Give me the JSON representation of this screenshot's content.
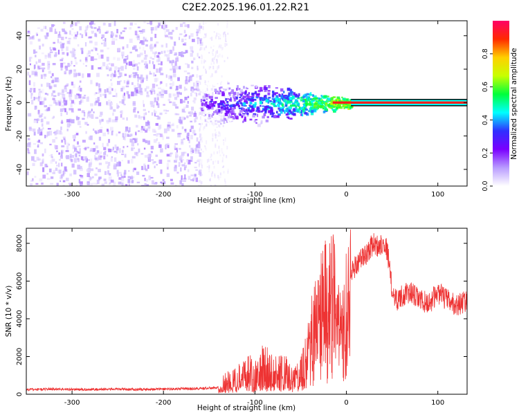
{
  "title": "C2E2.2025.196.01.22.R21",
  "colors": {
    "snr_line": "#ee3333",
    "scatter_base": "#7a1cf0",
    "frame": "#000000",
    "colormap_stops": [
      "#ffffff",
      "#b99cff",
      "#7a00ff",
      "#2f2fff",
      "#00ffff",
      "#00ff3c",
      "#c8ff00",
      "#ffd000",
      "#ff2a00",
      "#ff0066"
    ]
  },
  "chart_data": [
    {
      "type": "heatmap",
      "xlabel": "Height of straight line (km)",
      "ylabel": "Frequency (Hz)",
      "xlim": [
        -350,
        132
      ],
      "ylim": [
        -50,
        49
      ],
      "xticks": [
        -300,
        -200,
        -100,
        0,
        100
      ],
      "yticks": [
        -40,
        -20,
        0,
        20,
        40
      ],
      "grid": false,
      "colorbar": {
        "label": "Normalized spectral amplitude",
        "range": [
          0,
          1
        ],
        "ticks": [
          "0.0",
          "0.2",
          "0.4",
          "0.6",
          "0.8"
        ]
      },
      "regions": [
        {
          "x_range": [
            -350,
            -160
          ],
          "freq_range": [
            -50,
            49
          ],
          "amplitude": 0.06,
          "description": "broadband"
        },
        {
          "x_range": [
            -160,
            -130
          ],
          "freq_range": [
            -50,
            49
          ],
          "amplitude": 0.04,
          "description": "fading broadband"
        },
        {
          "x_range": [
            -160,
            -40
          ],
          "freq_range": [
            -15,
            15
          ],
          "amplitude": 0.35,
          "description": "narrowing band"
        },
        {
          "x_range": [
            -40,
            5
          ],
          "freq_range": [
            -5,
            5
          ],
          "amplitude": 0.6,
          "description": "narrow band"
        },
        {
          "x_range": [
            5,
            132
          ],
          "freq_range": [
            -2,
            2
          ],
          "amplitude": 0.95,
          "description": "steady line"
        }
      ]
    },
    {
      "type": "line",
      "xlabel": "Height of straight line (km)",
      "ylabel": "SNR (10 * v/v)",
      "xlim": [
        -350,
        132
      ],
      "ylim": [
        0,
        8800
      ],
      "xticks": [
        -300,
        -200,
        -100,
        0,
        100
      ],
      "yticks": [
        0,
        2000,
        4000,
        6000,
        8000
      ],
      "grid": false,
      "series": [
        {
          "x": [
            -350,
            -320,
            -290,
            -260,
            -230,
            -200,
            -180,
            -160,
            -140,
            -130,
            -120,
            -110,
            -100,
            -90,
            -80,
            -70,
            -60,
            -50,
            -45,
            -40,
            -35,
            -30,
            -25,
            -20,
            -15,
            -10,
            -5,
            0,
            5,
            10,
            15,
            20,
            25,
            30,
            35,
            40,
            45,
            50,
            55,
            60,
            70,
            80,
            90,
            100,
            110,
            120,
            132
          ],
          "y": [
            250,
            280,
            250,
            270,
            260,
            280,
            290,
            300,
            350,
            700,
            800,
            1200,
            1000,
            1500,
            1200,
            1300,
            800,
            1000,
            1800,
            3000,
            4000,
            4800,
            5500,
            5000,
            5800,
            4500,
            4000,
            5200,
            6500,
            6800,
            7200,
            7300,
            7700,
            8000,
            7800,
            8100,
            7600,
            5500,
            5000,
            5200,
            5400,
            5000,
            4800,
            5400,
            5000,
            4700,
            5000
          ]
        }
      ]
    }
  ]
}
